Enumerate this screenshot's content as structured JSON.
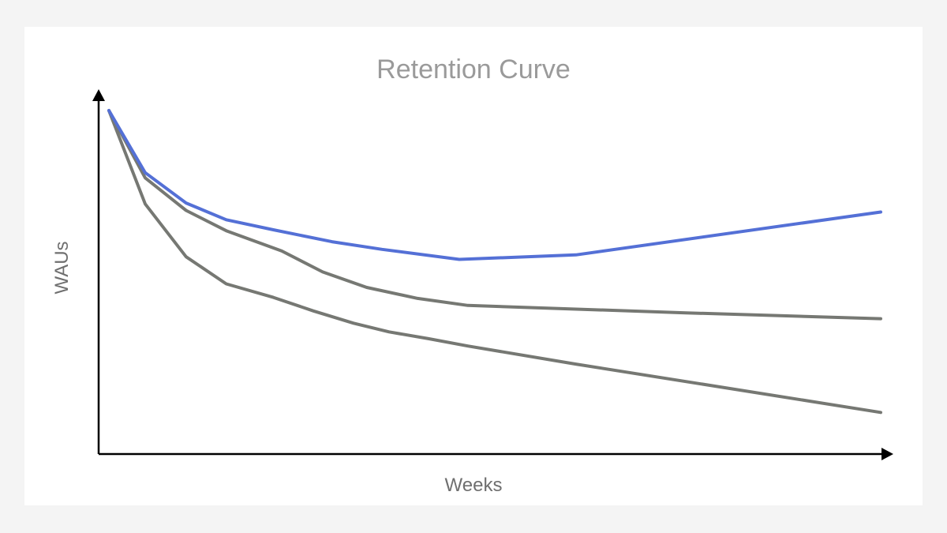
{
  "chart_data": {
    "type": "line",
    "title": "Retention Curve",
    "xlabel": "Weeks",
    "ylabel": "WAUs",
    "grid": false,
    "legend": "none",
    "axis_ticks": false,
    "xlim": [
      0,
      100
    ],
    "ylim": [
      0,
      100
    ],
    "series": [
      {
        "color": "#5470d6",
        "points": [
          [
            0,
            100
          ],
          [
            4.7,
            80.7
          ],
          [
            10,
            71.3
          ],
          [
            15.2,
            66.1
          ],
          [
            21.3,
            63.0
          ],
          [
            28.9,
            59.3
          ],
          [
            35.4,
            56.9
          ],
          [
            45.4,
            53.8
          ],
          [
            60.5,
            55.2
          ],
          [
            100,
            68.5
          ]
        ]
      },
      {
        "color": "#767873",
        "points": [
          [
            0,
            100
          ],
          [
            4.7,
            79.1
          ],
          [
            10,
            69.0
          ],
          [
            15.2,
            62.7
          ],
          [
            22.4,
            56.4
          ],
          [
            27.7,
            49.9
          ],
          [
            33.4,
            45.1
          ],
          [
            40.0,
            41.7
          ],
          [
            46.5,
            39.5
          ],
          [
            74.8,
            37.2
          ],
          [
            100,
            35.4
          ]
        ]
      },
      {
        "color": "#767873",
        "points": [
          [
            0,
            100
          ],
          [
            4.7,
            71.0
          ],
          [
            10,
            54.6
          ],
          [
            15.2,
            46.2
          ],
          [
            21.3,
            42.0
          ],
          [
            26.5,
            37.8
          ],
          [
            31.7,
            34.0
          ],
          [
            36.3,
            31.3
          ],
          [
            41.4,
            29.2
          ],
          [
            46.5,
            26.9
          ],
          [
            60.5,
            21.3
          ],
          [
            100,
            6.3
          ]
        ]
      }
    ]
  }
}
